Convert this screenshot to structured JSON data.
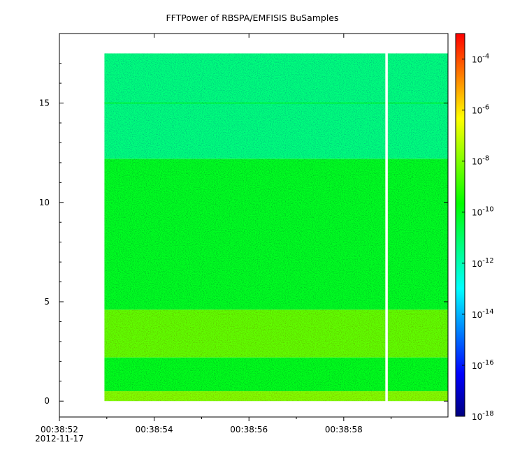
{
  "chart_data": {
    "type": "heatmap",
    "title": "FFTPower of RBSPA/EMFISIS  BuSamples",
    "xlabel": "",
    "ylabel": "",
    "x_ticks": [
      {
        "label": "00:38:52",
        "sub": "2012-11-17"
      },
      {
        "label": "00:38:54",
        "sub": ""
      },
      {
        "label": "00:38:56",
        "sub": ""
      },
      {
        "label": "00:38:58",
        "sub": ""
      }
    ],
    "xlim_seconds": [
      52.0,
      60.2
    ],
    "data_x_range_seconds": [
      52.95,
      60.2
    ],
    "gap_x_seconds": 58.9,
    "y_ticks": [
      "0",
      "5",
      "10",
      "15"
    ],
    "ylim": [
      -0.8,
      18.5
    ],
    "data_y_range": [
      0,
      17.5
    ],
    "colorbar": {
      "scale": "log",
      "range": [
        "1e-18",
        "1e-3"
      ],
      "tick_labels": [
        {
          "base": "10",
          "exp": "-4"
        },
        {
          "base": "10",
          "exp": "-6"
        },
        {
          "base": "10",
          "exp": "-8"
        },
        {
          "base": "10",
          "exp": "-10"
        },
        {
          "base": "10",
          "exp": "-12"
        },
        {
          "base": "10",
          "exp": "-14"
        },
        {
          "base": "10",
          "exp": "-16"
        },
        {
          "base": "10",
          "exp": "-18"
        }
      ],
      "colors": [
        "#00007f",
        "#0000ff",
        "#0080ff",
        "#00ffff",
        "#00ff80",
        "#00ff00",
        "#80ff00",
        "#ffff00",
        "#ff8000",
        "#ff0000"
      ]
    },
    "bands": [
      {
        "y": [
          0.0,
          0.5
        ],
        "log10_power": -8.0
      },
      {
        "y": [
          0.5,
          2.2
        ],
        "log10_power": -10.0
      },
      {
        "y": [
          2.2,
          4.6
        ],
        "log10_power": -8.4
      },
      {
        "y": [
          4.6,
          12.2
        ],
        "log10_power": -10.1
      },
      {
        "y": [
          12.2,
          17.5
        ],
        "log10_power": -11.3
      }
    ],
    "line_features": [
      {
        "y": 15.0,
        "log10_power": -10.5
      }
    ]
  }
}
